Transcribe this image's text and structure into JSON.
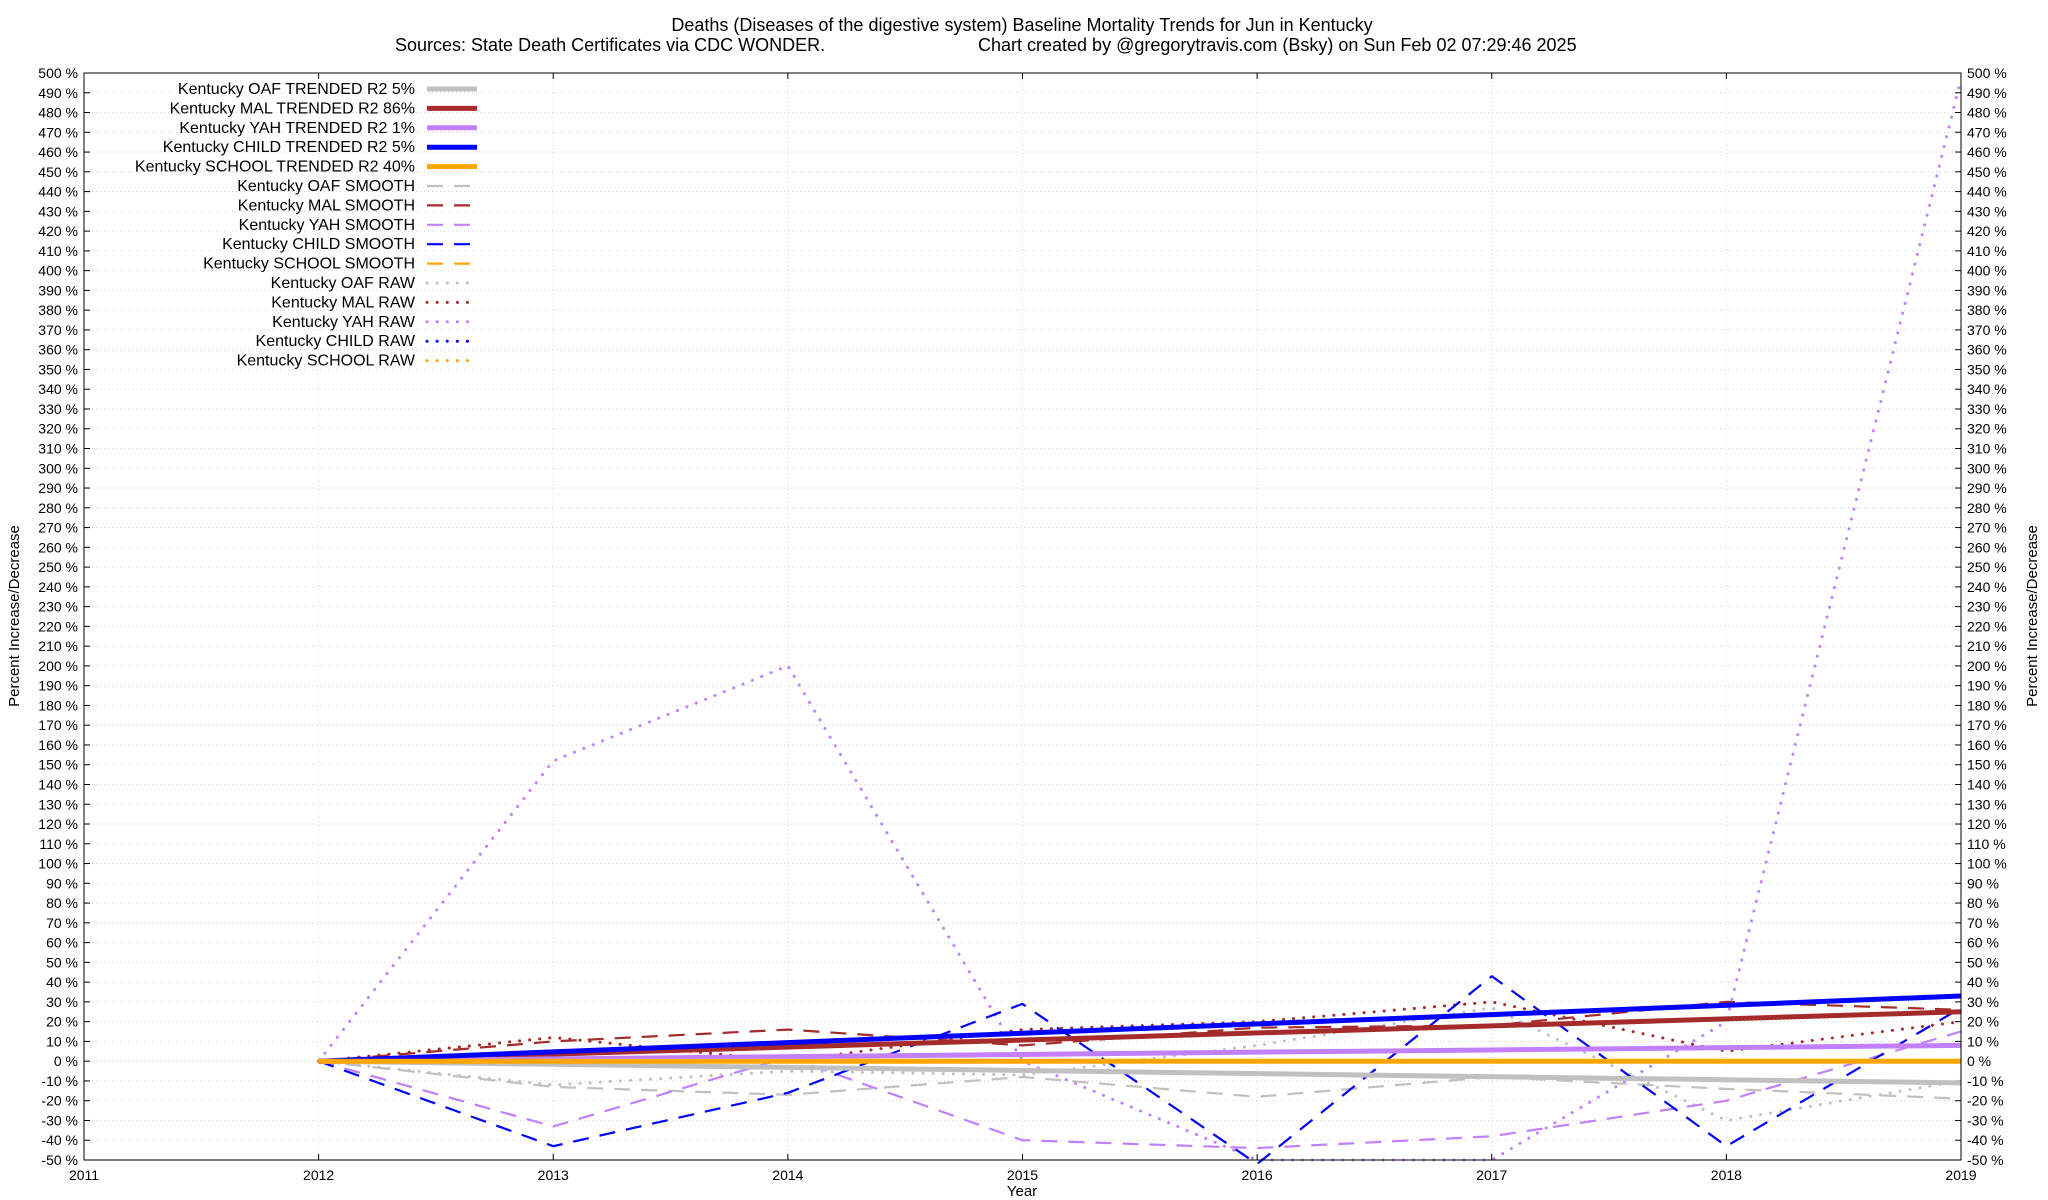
{
  "chart_data": {
    "type": "line",
    "title": "Deaths (Diseases of the digestive system)  Baseline Mortality Trends for Jun in Kentucky",
    "subtitle_left": "Sources: State Death Certificates via CDC WONDER.",
    "subtitle_right": "Chart created by @gregorytravis.com (Bsky) on Sun Feb 02 07:29:46 2025",
    "xlabel": "Year",
    "ylabel": "Percent Increase/Decrease",
    "y2label": "Percent Increase/Decrease",
    "xlim": [
      2011,
      2019
    ],
    "ylim": [
      -50,
      500
    ],
    "x_ticks": [
      2011,
      2012,
      2013,
      2014,
      2015,
      2016,
      2017,
      2018,
      2019
    ],
    "y_tick_step": 10,
    "y_tick_suffix": " %",
    "grid": true,
    "legend_position": "top-left",
    "series": [
      {
        "name": "Kentucky OAF TRENDED R2  5%",
        "style": "trend",
        "color": "#c0c0c0",
        "x": [
          2012,
          2019
        ],
        "y": [
          0,
          -11
        ]
      },
      {
        "name": "Kentucky MAL TRENDED R2  86%",
        "style": "trend",
        "color": "#a52a2a",
        "x": [
          2012,
          2019
        ],
        "y": [
          0,
          25
        ]
      },
      {
        "name": "Kentucky YAH TRENDED R2  1%",
        "style": "trend",
        "color": "#c080ff",
        "x": [
          2012,
          2019
        ],
        "y": [
          0,
          8
        ]
      },
      {
        "name": "Kentucky CHILD TRENDED R2  5%",
        "style": "trend",
        "color": "#0000ff",
        "x": [
          2012,
          2019
        ],
        "y": [
          0,
          33
        ]
      },
      {
        "name": "Kentucky SCHOOL TRENDED R2  40%",
        "style": "trend",
        "color": "#ffa500",
        "x": [
          2012,
          2019
        ],
        "y": [
          0,
          0
        ]
      },
      {
        "name": "Kentucky OAF SMOOTH",
        "style": "smooth",
        "color": "#c0c0c0",
        "x": [
          2012,
          2013,
          2014,
          2015,
          2016,
          2017,
          2018,
          2019
        ],
        "y": [
          0,
          -13,
          -17,
          -8,
          -18,
          -8,
          -14,
          -19
        ]
      },
      {
        "name": "Kentucky MAL SMOOTH",
        "style": "smooth",
        "color": "#a52a2a",
        "x": [
          2012,
          2013,
          2014,
          2015,
          2016,
          2017,
          2018,
          2019
        ],
        "y": [
          0,
          10,
          16,
          8,
          17,
          18,
          30,
          26
        ]
      },
      {
        "name": "Kentucky YAH SMOOTH",
        "style": "smooth",
        "color": "#c080ff",
        "x": [
          2012,
          2013,
          2014,
          2015,
          2016,
          2017,
          2018,
          2019
        ],
        "y": [
          0,
          -33,
          2,
          -40,
          -44,
          -38,
          -20,
          15
        ]
      },
      {
        "name": "Kentucky CHILD SMOOTH",
        "style": "smooth",
        "color": "#0000ff",
        "x": [
          2012,
          2013,
          2014,
          2015,
          2016,
          2017,
          2018,
          2019
        ],
        "y": [
          0,
          -43,
          -16,
          29,
          -52,
          43,
          -43,
          27
        ]
      },
      {
        "name": "Kentucky SCHOOL SMOOTH",
        "style": "smooth",
        "color": "#ffa500",
        "x": [
          2012,
          2013,
          2014,
          2015,
          2016,
          2017,
          2018,
          2019
        ],
        "y": [
          0,
          0,
          0,
          0,
          0,
          0,
          0,
          0
        ]
      },
      {
        "name": "Kentucky OAF RAW",
        "style": "raw",
        "color": "#c0c0c0",
        "x": [
          2012,
          2013,
          2014,
          2015,
          2016,
          2017,
          2018,
          2019
        ],
        "y": [
          0,
          -12,
          -5,
          -7,
          8,
          27,
          -30,
          -10
        ]
      },
      {
        "name": "Kentucky MAL RAW",
        "style": "raw",
        "color": "#a52a2a",
        "x": [
          2012,
          2013,
          2014,
          2015,
          2016,
          2017,
          2018,
          2019
        ],
        "y": [
          0,
          12,
          0,
          16,
          20,
          30,
          5,
          20
        ]
      },
      {
        "name": "Kentucky YAH RAW",
        "style": "raw",
        "color": "#c080ff",
        "x": [
          2012,
          2013,
          2014,
          2015,
          2016,
          2017,
          2018,
          2019
        ],
        "y": [
          0,
          152,
          200,
          0,
          -50,
          -50,
          20,
          497
        ]
      },
      {
        "name": "Kentucky CHILD RAW",
        "style": "raw",
        "color": "#0000ff",
        "x": [
          2012,
          2013,
          2014,
          2015,
          2016,
          2017,
          2018,
          2019
        ],
        "y": [
          0,
          0,
          0,
          0,
          0,
          0,
          0,
          0
        ]
      },
      {
        "name": "Kentucky SCHOOL RAW",
        "style": "raw",
        "color": "#ffa500",
        "x": [
          2012,
          2013,
          2014,
          2015,
          2016,
          2017,
          2018,
          2019
        ],
        "y": [
          0,
          0,
          0,
          0,
          0,
          0,
          0,
          0
        ]
      }
    ]
  }
}
